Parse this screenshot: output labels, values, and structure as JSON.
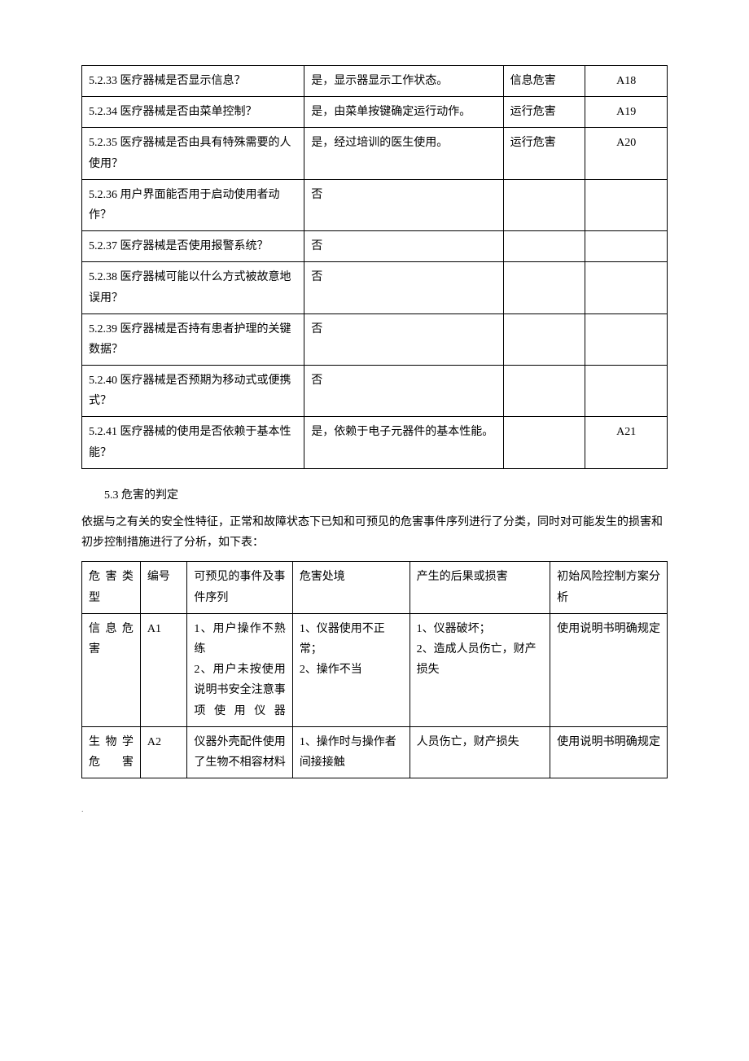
{
  "table1": {
    "rows": [
      {
        "q": "5.2.33  医疗器械是否显示信息？",
        "a": "是，显示器显示工作状态。",
        "hazard": "信息危害",
        "code": "A18"
      },
      {
        "q": "5.2.34  医疗器械是否由菜单控制？",
        "a": "是，由菜单按键确定运行动作。",
        "hazard": "运行危害",
        "code": "A19"
      },
      {
        "q": "5.2.35  医疗器械是否由具有特殊需要的人使用？",
        "a": "是，经过培训的医生使用。",
        "hazard": "运行危害",
        "code": "A20"
      },
      {
        "q": "5.2.36  用户界面能否用于启动使用者动作？",
        "a": "否",
        "hazard": "",
        "code": ""
      },
      {
        "q": "5.2.37  医疗器械是否使用报警系统？",
        "a": "否",
        "hazard": "",
        "code": ""
      },
      {
        "q": "5.2.38  医疗器械可能以什么方式被故意地误用？",
        "a": "否",
        "hazard": "",
        "code": ""
      },
      {
        "q": "5.2.39  医疗器械是否持有患者护理的关键数据？",
        "a": "否",
        "hazard": "",
        "code": ""
      },
      {
        "q": "5.2.40  医疗器械是否预期为移动式或便携式？",
        "a": "否",
        "hazard": "",
        "code": ""
      },
      {
        "q": "5.2.41  医疗器械的使用是否依赖于基本性能？",
        "a": "是，依赖于电子元器件的基本性能。",
        "hazard": "",
        "code": "A21"
      }
    ]
  },
  "section_title": "5.3 危害的判定",
  "section_body": "依据与之有关的安全性特征，正常和故障状态下已知和可预见的危害事件序列进行了分类，同时对可能发生的损害和初步控制措施进行了分析，如下表：",
  "table2": {
    "header": {
      "c1": "危害类型",
      "c2": "编号",
      "c3": "可预见的事件及事件序列",
      "c4": "危害处境",
      "c5": "产生的后果或损害",
      "c6": "初始风险控制方案分析"
    },
    "rows": [
      {
        "c1": "信息危害",
        "c2": "A1",
        "c3": "1、用户操作不熟练\n2、用户未按使用说明书安全注意事项使用仪器",
        "c4": "1、仪器使用不正常；\n2、操作不当",
        "c5": "1、仪器破坏；\n2、造成人员伤亡，财产损失",
        "c6": "使用说明书明确规定"
      },
      {
        "c1": "生物学危害",
        "c2": "A2",
        "c3": "仪器外壳配件使用了生物不相容材料",
        "c4": "1、操作时与操作者间接接触",
        "c5": "人员伤亡，财产损失",
        "c6": "使用说明书明确规定"
      }
    ]
  }
}
